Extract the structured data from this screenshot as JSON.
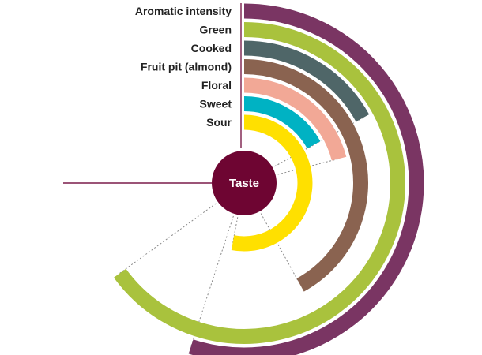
{
  "chart_data": {
    "type": "radial-bar",
    "center_label": "Taste",
    "max_value": 100,
    "start_angle_deg": 0,
    "full_scale_deg": 360,
    "series": [
      {
        "name": "Aromatic intensity",
        "value": 55,
        "color": "#7a3563"
      },
      {
        "name": "Green",
        "value": 65,
        "color": "#a9c23d"
      },
      {
        "name": "Cooked",
        "value": 17,
        "color": "#4f6668"
      },
      {
        "name": "Fruit pit (almond)",
        "value": 42,
        "color": "#8a6350"
      },
      {
        "name": "Floral",
        "value": 21,
        "color": "#f2a896"
      },
      {
        "name": "Sweet",
        "value": 17,
        "color": "#00b2c3"
      },
      {
        "name": "Sour",
        "value": 53,
        "color": "#ffe000"
      }
    ],
    "center_color": "#6e0532",
    "axis_line_color": "#7a1c4a",
    "grid": "dashed radial lines"
  }
}
